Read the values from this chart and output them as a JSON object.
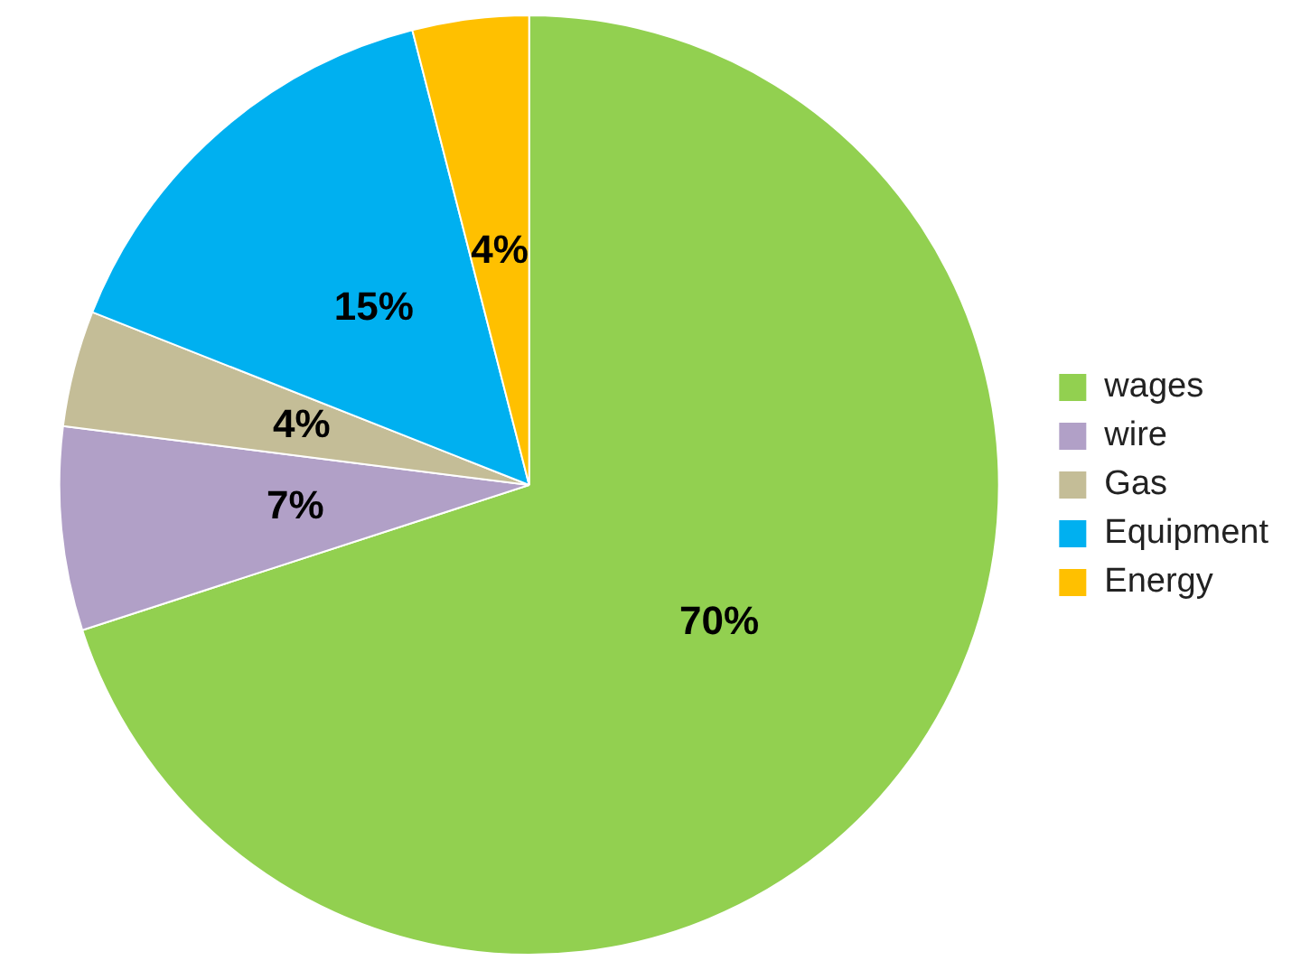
{
  "chart_data": {
    "type": "pie",
    "categories": [
      "wages",
      "wire",
      "Gas",
      "Equipment",
      "Energy"
    ],
    "values": [
      70,
      7,
      4,
      15,
      4
    ],
    "value_labels": [
      "70%",
      "7%",
      "4%",
      "15%",
      "4%"
    ],
    "colors": [
      "#92d050",
      "#b1a0c7",
      "#c4bd97",
      "#00b0f0",
      "#ffc000"
    ],
    "legend": "right"
  }
}
